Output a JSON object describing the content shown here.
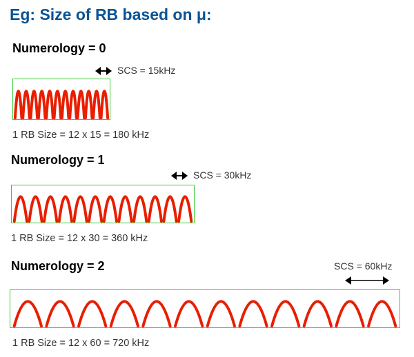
{
  "title": "Eg: Size of RB based on μ:",
  "colors": {
    "title": "#0b5394",
    "wave": "#e81e00",
    "box": "#33cc33"
  },
  "rows": [
    {
      "label": "Numerology = 0",
      "scs": "SCS = 15kHz",
      "size": "1 RB Size = 12 x 15 = 180 kHz",
      "humps": 12
    },
    {
      "label": "Numerology = 1",
      "scs": "SCS = 30kHz",
      "size": "1 RB Size = 12 x 30 = 360 kHz",
      "humps": 12
    },
    {
      "label": "Numerology = 2",
      "scs": "SCS = 60kHz",
      "size": "1 RB Size = 12 x 60 = 720 kHz",
      "humps": 12
    }
  ]
}
